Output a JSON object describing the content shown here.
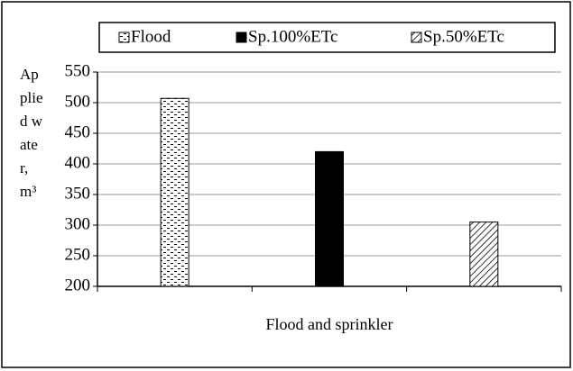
{
  "chart_data": {
    "type": "bar",
    "y_label": "Applied water, m³",
    "x_label": "Flood and sprinkler",
    "categories": [
      null,
      null,
      null
    ],
    "series": [
      {
        "name": "Flood",
        "color": "#000000",
        "pattern": "dots",
        "values": [
          507,
          null,
          null
        ]
      },
      {
        "name": "Sp.100%ETc",
        "color": "#000000",
        "pattern": "solid",
        "values": [
          null,
          420,
          null
        ]
      },
      {
        "name": "Sp.50%ETc",
        "color": "#000000",
        "pattern": "hatch",
        "values": [
          null,
          null,
          305
        ]
      }
    ],
    "ylim": [
      200,
      550
    ],
    "yticks": [
      200,
      250,
      300,
      350,
      400,
      450,
      500,
      550
    ],
    "grid": true,
    "legend": "top"
  }
}
